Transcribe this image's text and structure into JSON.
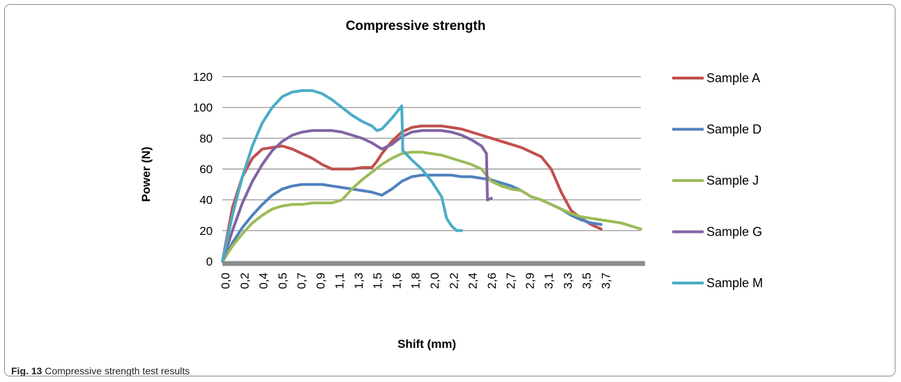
{
  "caption": {
    "label": "Fig. 13",
    "text": " Compressive strength test results"
  },
  "chart_data": {
    "type": "line",
    "title": "Compressive strength",
    "xlabel": "Shift (mm)",
    "ylabel": "Power (N)",
    "ylim": [
      0,
      120
    ],
    "yticks": [
      0,
      20,
      40,
      60,
      80,
      100,
      120
    ],
    "xlim": [
      0,
      4.2
    ],
    "xtick_labels": [
      "0,0",
      "0,2",
      "0,4",
      "0,5",
      "0,7",
      "0,9",
      "1,1",
      "1,3",
      "1,5",
      "1,6",
      "1,8",
      "2,0",
      "2,2",
      "2,4",
      "2,6",
      "2,7",
      "2,9",
      "3,1",
      "3,3",
      "3,5",
      "3,7"
    ],
    "grid": true,
    "legend_position": "right",
    "series": [
      {
        "name": "Sample A",
        "color": "#c0504d",
        "x": [
          0,
          0.1,
          0.2,
          0.3,
          0.4,
          0.5,
          0.6,
          0.7,
          0.8,
          0.9,
          1.0,
          1.1,
          1.2,
          1.3,
          1.4,
          1.5,
          1.55,
          1.6,
          1.7,
          1.8,
          1.9,
          2.0,
          2.1,
          2.2,
          2.3,
          2.4,
          2.5,
          2.6,
          2.7,
          2.8,
          2.9,
          3.0,
          3.1,
          3.2,
          3.3,
          3.4,
          3.5,
          3.6,
          3.7,
          3.8
        ],
        "y": [
          0,
          35,
          55,
          67,
          73,
          74,
          75,
          73,
          70,
          67,
          63,
          60,
          60,
          60,
          61,
          61,
          65,
          70,
          78,
          84,
          87,
          88,
          88,
          88,
          87,
          86,
          84,
          82,
          80,
          78,
          76,
          74,
          71,
          68,
          60,
          45,
          33,
          28,
          24,
          21
        ]
      },
      {
        "name": "Sample D",
        "color": "#4f81bd",
        "x": [
          0,
          0.1,
          0.2,
          0.3,
          0.4,
          0.5,
          0.6,
          0.7,
          0.8,
          0.9,
          1.0,
          1.1,
          1.2,
          1.3,
          1.4,
          1.5,
          1.6,
          1.7,
          1.8,
          1.9,
          2.0,
          2.1,
          2.2,
          2.3,
          2.4,
          2.5,
          2.6,
          2.7,
          2.8,
          2.9,
          3.0,
          3.1,
          3.2,
          3.3,
          3.4,
          3.5,
          3.6,
          3.7,
          3.8
        ],
        "y": [
          0,
          12,
          22,
          30,
          37,
          43,
          47,
          49,
          50,
          50,
          50,
          49,
          48,
          47,
          46,
          45,
          43,
          47,
          52,
          55,
          56,
          56,
          56,
          56,
          55,
          55,
          54,
          53,
          51,
          49,
          46,
          42,
          40,
          37,
          34,
          30,
          27,
          25,
          24
        ]
      },
      {
        "name": "Sample J",
        "color": "#9bbb59",
        "x": [
          0,
          0.1,
          0.2,
          0.3,
          0.4,
          0.5,
          0.6,
          0.7,
          0.8,
          0.9,
          1.0,
          1.1,
          1.2,
          1.3,
          1.4,
          1.5,
          1.6,
          1.7,
          1.8,
          1.9,
          2.0,
          2.1,
          2.2,
          2.3,
          2.4,
          2.5,
          2.6,
          2.7,
          2.8,
          2.9,
          3.0,
          3.1,
          3.2,
          3.3,
          3.4,
          3.5,
          3.6,
          3.7,
          3.8,
          3.9,
          4.0,
          4.1,
          4.2
        ],
        "y": [
          0,
          10,
          18,
          25,
          30,
          34,
          36,
          37,
          37,
          38,
          38,
          38,
          40,
          47,
          53,
          58,
          63,
          67,
          70,
          71,
          71,
          70,
          69,
          67,
          65,
          63,
          60,
          52,
          49,
          47,
          46,
          42,
          40,
          37,
          34,
          31,
          29,
          28,
          27,
          26,
          25,
          23,
          21
        ]
      },
      {
        "name": "Sample G",
        "color": "#8064a2",
        "x": [
          0,
          0.1,
          0.2,
          0.3,
          0.4,
          0.5,
          0.6,
          0.7,
          0.8,
          0.9,
          1.0,
          1.1,
          1.2,
          1.3,
          1.4,
          1.5,
          1.6,
          1.7,
          1.8,
          1.9,
          2.0,
          2.1,
          2.2,
          2.3,
          2.4,
          2.5,
          2.6,
          2.65,
          2.66,
          2.7
        ],
        "y": [
          0,
          20,
          38,
          52,
          63,
          72,
          78,
          82,
          84,
          85,
          85,
          85,
          84,
          82,
          80,
          77,
          73,
          76,
          81,
          84,
          85,
          85,
          85,
          84,
          82,
          79,
          75,
          70,
          40,
          41
        ]
      },
      {
        "name": "Sample M",
        "color": "#4bacc6",
        "x": [
          0,
          0.1,
          0.2,
          0.3,
          0.4,
          0.5,
          0.6,
          0.7,
          0.8,
          0.9,
          1.0,
          1.1,
          1.2,
          1.3,
          1.4,
          1.5,
          1.55,
          1.6,
          1.7,
          1.8,
          1.81,
          1.9,
          2.0,
          2.1,
          2.2,
          2.25,
          2.3,
          2.35,
          2.4
        ],
        "y": [
          0,
          30,
          55,
          75,
          90,
          100,
          107,
          110,
          111,
          111,
          109,
          105,
          100,
          95,
          91,
          88,
          85,
          86,
          93,
          101,
          72,
          66,
          60,
          52,
          42,
          28,
          23,
          20,
          20
        ]
      }
    ]
  }
}
